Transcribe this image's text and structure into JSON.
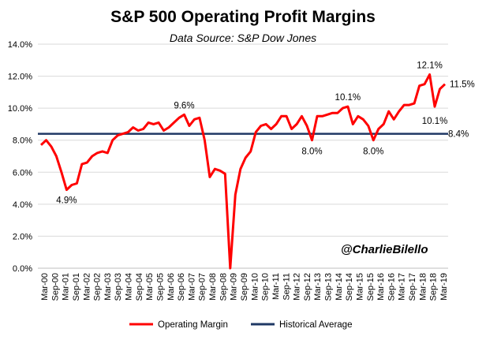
{
  "chart_data": {
    "type": "line",
    "title": "S&P 500 Operating Profit Margins",
    "subtitle": "Data Source: S&P Dow Jones",
    "ylim": [
      0,
      14
    ],
    "y_ticks": [
      0,
      2,
      4,
      6,
      8,
      10,
      12,
      14
    ],
    "y_tick_labels": [
      "0.0%",
      "2.0%",
      "4.0%",
      "6.0%",
      "8.0%",
      "10.0%",
      "12.0%",
      "14.0%"
    ],
    "x_tick_labels": [
      "Mar-00",
      "Sep-00",
      "Mar-01",
      "Sep-01",
      "Mar-02",
      "Sep-02",
      "Mar-03",
      "Sep-03",
      "Mar-04",
      "Sep-04",
      "Mar-05",
      "Sep-05",
      "Mar-06",
      "Sep-06",
      "Mar-07",
      "Sep-07",
      "Mar-08",
      "Sep-08",
      "Mar-09",
      "Sep-09",
      "Mar-10",
      "Sep-10",
      "Mar-11",
      "Sep-11",
      "Mar-12",
      "Sep-12",
      "Mar-13",
      "Sep-13",
      "Mar-14",
      "Sep-14",
      "Mar-15",
      "Sep-15",
      "Mar-16",
      "Sep-16",
      "Mar-17",
      "Sep-17",
      "Mar-18",
      "Sep-18",
      "Mar-19"
    ],
    "grid": true,
    "series": [
      {
        "name": "Operating Margin",
        "color": "#ff0000",
        "values": [
          7.7,
          8.0,
          7.6,
          7.0,
          6.0,
          4.9,
          5.2,
          5.3,
          6.5,
          6.6,
          7.0,
          7.2,
          7.3,
          7.2,
          8.0,
          8.3,
          8.4,
          8.5,
          8.8,
          8.6,
          8.7,
          9.1,
          9.0,
          9.1,
          8.6,
          8.8,
          9.1,
          9.4,
          9.6,
          8.9,
          9.3,
          9.4,
          8.0,
          5.7,
          6.2,
          6.1,
          5.9,
          0.0,
          4.6,
          6.2,
          6.9,
          7.3,
          8.5,
          8.9,
          9.0,
          8.7,
          9.0,
          9.5,
          9.5,
          8.7,
          9.0,
          9.5,
          8.9,
          8.0,
          9.5,
          9.5,
          9.6,
          9.7,
          9.7,
          10.0,
          10.1,
          9.0,
          9.5,
          9.3,
          8.9,
          8.0,
          8.7,
          9.0,
          9.8,
          9.3,
          9.8,
          10.2,
          10.2,
          10.3,
          11.4,
          11.5,
          12.1,
          10.1,
          11.2,
          11.5
        ]
      },
      {
        "name": "Historical Average",
        "color": "#1f3864",
        "value": 8.4
      }
    ],
    "annotations": [
      {
        "label": "4.9%",
        "index": 5,
        "value": 4.9
      },
      {
        "label": "9.6%",
        "index": 28,
        "value": 9.6
      },
      {
        "label": "8.0%",
        "index": 53,
        "value": 8.0
      },
      {
        "label": "10.1%",
        "index": 60,
        "value": 10.1
      },
      {
        "label": "8.0%",
        "index": 65,
        "value": 8.0
      },
      {
        "label": "12.1%",
        "index": 76,
        "value": 12.1
      },
      {
        "label": "10.1%",
        "index": 77,
        "value": 10.1
      },
      {
        "label": "11.5%",
        "index": 79,
        "value": 11.5
      },
      {
        "label": "8.4%",
        "value": 8.4
      }
    ],
    "legend": {
      "placement": "bottom",
      "entries": [
        "Operating Margin",
        "Historical Average"
      ]
    },
    "watermark": "@CharlieBilello"
  }
}
